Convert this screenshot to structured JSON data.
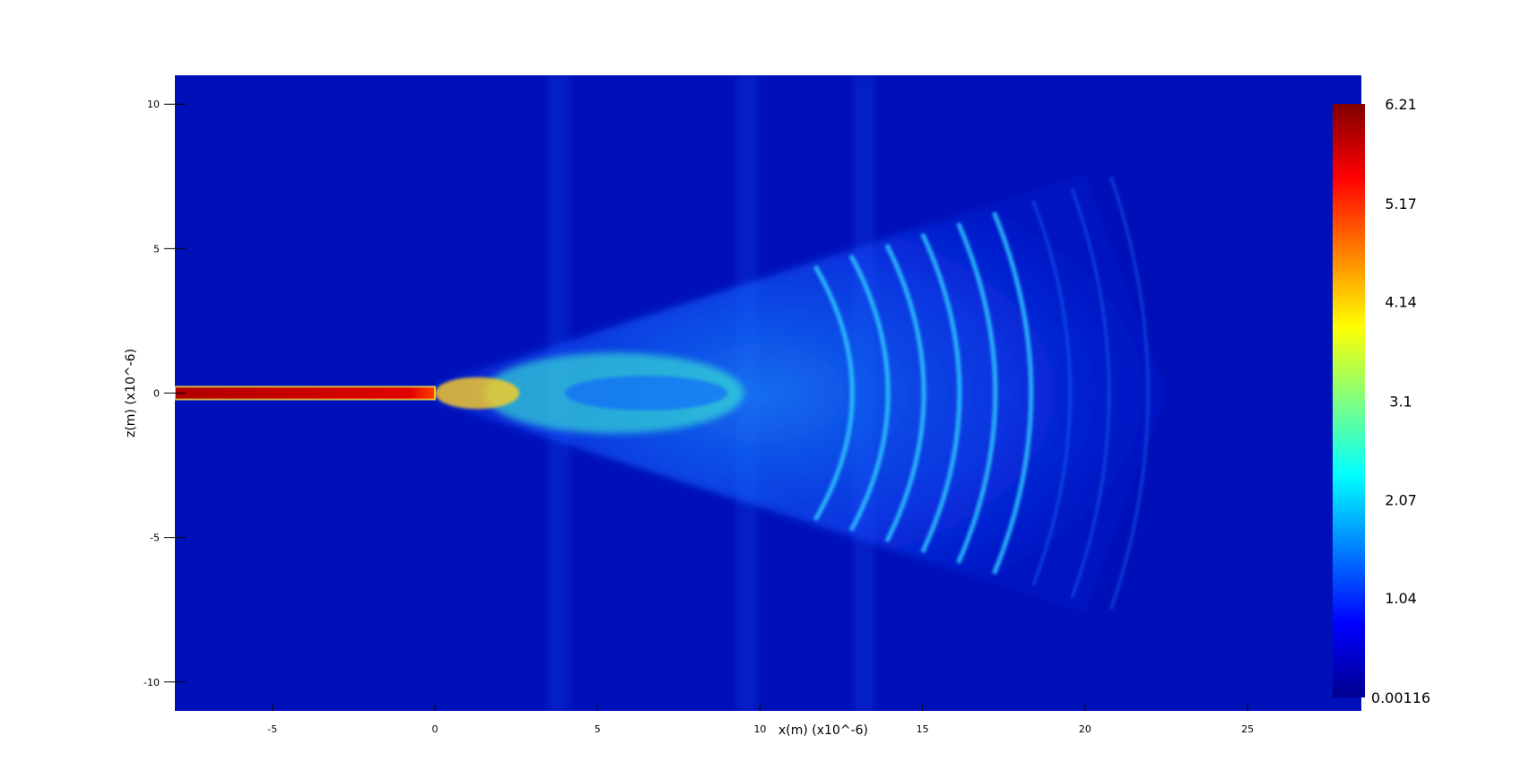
{
  "chart_data": {
    "type": "heatmap",
    "title": "",
    "xlabel": "x(m) (x10^-6)",
    "ylabel": "z(m) (x10^-6)",
    "xlim": [
      -8,
      28.5
    ],
    "ylim": [
      -11,
      11
    ],
    "x_ticks": [
      -5,
      0,
      5,
      10,
      15,
      20,
      25
    ],
    "y_ticks": [
      10,
      5,
      0,
      -5,
      -10
    ],
    "x_tick_labels": [
      "-5",
      "0",
      "5",
      "10",
      "15",
      "20",
      "25"
    ],
    "y_tick_labels": [
      "10",
      "5",
      "0",
      "-5",
      "-10"
    ],
    "grid": false,
    "colorbar": {
      "colormap": "jet",
      "min": 0.00116,
      "max": 6.21,
      "position": "right",
      "tick_values": [
        6.21,
        5.17,
        4.14,
        3.1,
        2.07,
        1.04,
        0.00116
      ],
      "tick_labels": [
        "6.21",
        "5.17",
        "4.14",
        "3.1",
        "2.07",
        "1.04",
        "0.00116"
      ]
    },
    "features": {
      "waveguide": {
        "x_start": -8,
        "x_end": 0,
        "z_center": 0,
        "half_width": 0.22,
        "value": 6.2
      },
      "beam_cone": {
        "x_apex": 0,
        "half_angle_slope": 0.4,
        "x_end": 20
      },
      "fringe_arcs_x": [
        12.9,
        14.0,
        15.1,
        16.2,
        17.3,
        18.4,
        19.6,
        20.8,
        22.0
      ]
    }
  }
}
